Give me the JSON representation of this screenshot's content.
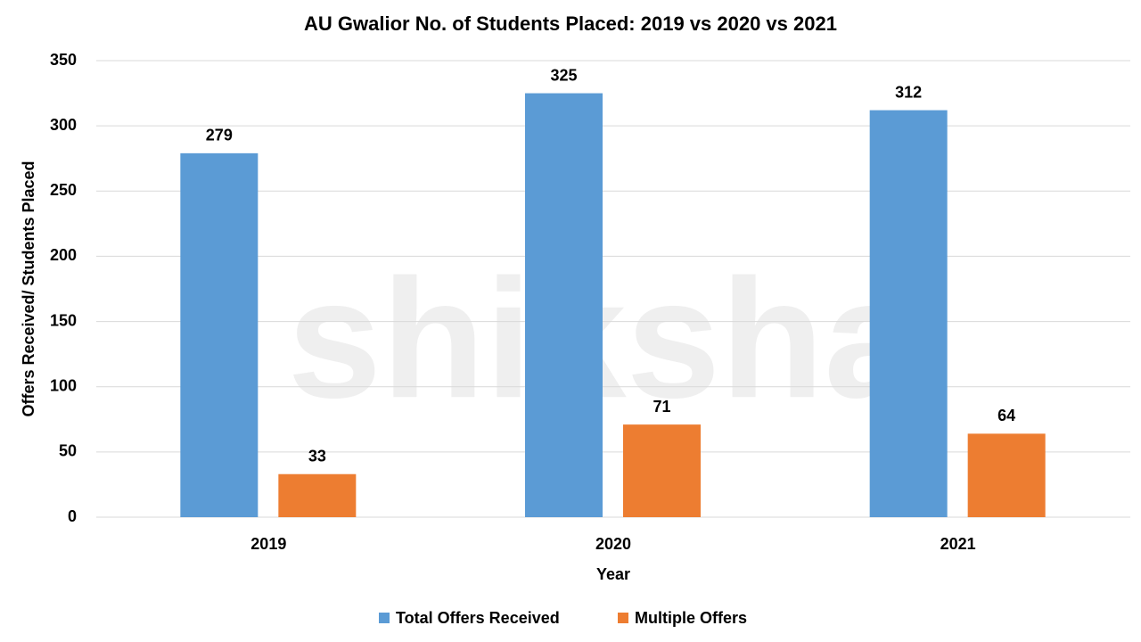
{
  "chart_data": {
    "type": "bar",
    "title": "AU Gwalior No. of Students Placed: 2019 vs 2020 vs 2021",
    "watermark": "shiksha",
    "x_label": "Year",
    "y_label": "Offers Received/ Students Placed",
    "categories": [
      "2019",
      "2020",
      "2021"
    ],
    "series": [
      {
        "name": "Total Offers Received",
        "color": "#5b9bd5",
        "values": [
          279,
          325,
          312
        ]
      },
      {
        "name": "Multiple Offers",
        "color": "#ed7d31",
        "values": [
          33,
          71,
          64
        ]
      }
    ],
    "ylim": [
      0,
      350
    ],
    "yticks": [
      0,
      50,
      100,
      150,
      200,
      250,
      300,
      350
    ],
    "grid": true,
    "legend": "bottom"
  }
}
